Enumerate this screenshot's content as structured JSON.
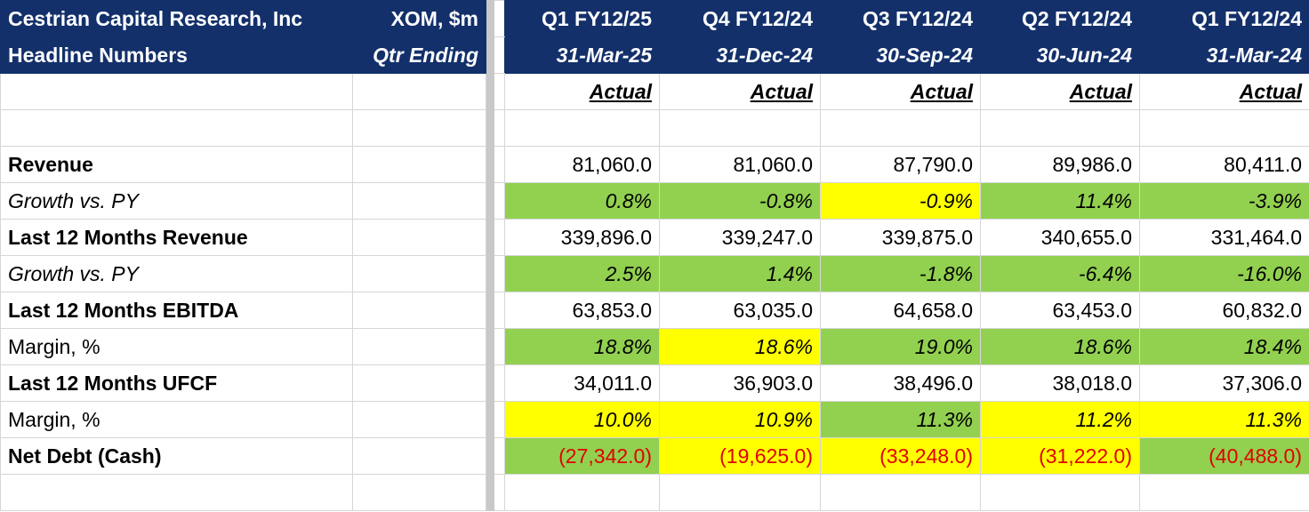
{
  "header": {
    "company": "Cestrian Capital Research, Inc",
    "subtitle": "Headline Numbers",
    "ticker": "XOM, $m",
    "period_label": "Qtr Ending",
    "quarters": [
      {
        "label": "Q1 FY12/25",
        "date": "31-Mar-25",
        "status": "Actual"
      },
      {
        "label": "Q4 FY12/24",
        "date": "31-Dec-24",
        "status": "Actual"
      },
      {
        "label": "Q3 FY12/24",
        "date": "30-Sep-24",
        "status": "Actual"
      },
      {
        "label": "Q2 FY12/24",
        "date": "30-Jun-24",
        "status": "Actual"
      },
      {
        "label": "Q1 FY12/24",
        "date": "31-Mar-24",
        "status": "Actual"
      }
    ]
  },
  "rows": [
    {
      "label": "Revenue",
      "style": "bold",
      "values": [
        "81,060.0",
        "81,060.0",
        "87,790.0",
        "89,986.0",
        "80,411.0"
      ],
      "fills": [
        "",
        "",
        "",
        "",
        ""
      ]
    },
    {
      "label": "Growth vs. PY",
      "style": "italic",
      "values": [
        "0.8%",
        "-0.8%",
        "-0.9%",
        "11.4%",
        "-3.9%"
      ],
      "fills": [
        "green",
        "green",
        "yellow",
        "green",
        "green"
      ]
    },
    {
      "label": "Last 12 Months Revenue",
      "style": "bold",
      "values": [
        "339,896.0",
        "339,247.0",
        "339,875.0",
        "340,655.0",
        "331,464.0"
      ],
      "fills": [
        "",
        "",
        "",
        "",
        ""
      ]
    },
    {
      "label": "Growth vs. PY",
      "style": "italic",
      "values": [
        "2.5%",
        "1.4%",
        "-1.8%",
        "-6.4%",
        "-16.0%"
      ],
      "fills": [
        "green",
        "green",
        "green",
        "green",
        "green"
      ]
    },
    {
      "label": "Last 12 Months EBITDA",
      "style": "bold",
      "values": [
        "63,853.0",
        "63,035.0",
        "64,658.0",
        "63,453.0",
        "60,832.0"
      ],
      "fills": [
        "",
        "",
        "",
        "",
        ""
      ]
    },
    {
      "label": "Margin, %",
      "style": "plain",
      "values": [
        "18.8%",
        "18.6%",
        "19.0%",
        "18.6%",
        "18.4%"
      ],
      "fills": [
        "green",
        "yellow",
        "green",
        "green",
        "green"
      ]
    },
    {
      "label": "Last 12 Months UFCF",
      "style": "bold",
      "values": [
        "34,011.0",
        "36,903.0",
        "38,496.0",
        "38,018.0",
        "37,306.0"
      ],
      "fills": [
        "",
        "",
        "",
        "",
        ""
      ]
    },
    {
      "label": "Margin, %",
      "style": "plain",
      "values": [
        "10.0%",
        "10.9%",
        "11.3%",
        "11.2%",
        "11.3%"
      ],
      "fills": [
        "yellow",
        "yellow",
        "green",
        "yellow",
        "yellow"
      ]
    },
    {
      "label": "Net Debt (Cash)",
      "style": "bold",
      "values": [
        "(27,342.0)",
        "(19,625.0)",
        "(33,248.0)",
        "(31,222.0)",
        "(40,488.0)"
      ],
      "fills": [
        "green",
        "yellow",
        "yellow",
        "yellow",
        "green"
      ],
      "value_color": "red"
    }
  ],
  "colors": {
    "header_bg": "#13306b",
    "green_fill": "#92d050",
    "yellow_fill": "#ffff00",
    "negative_text": "#e00000"
  }
}
